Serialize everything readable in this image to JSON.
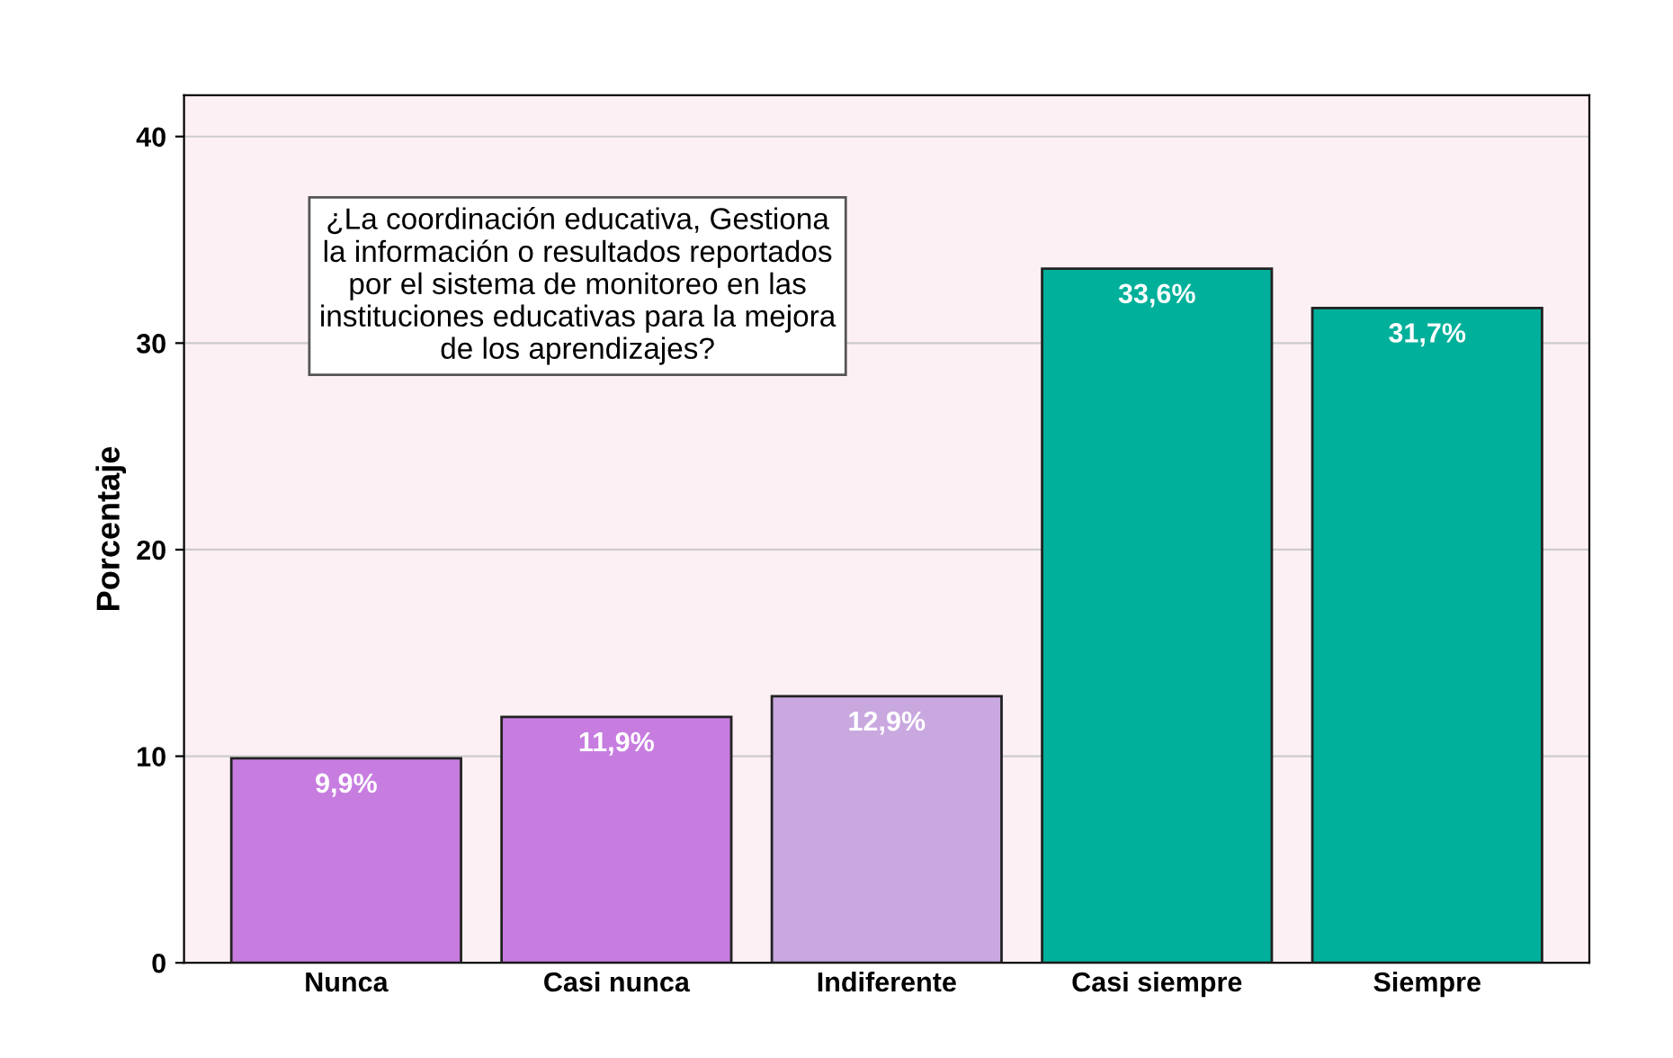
{
  "chart_data": {
    "type": "bar",
    "ylabel": "Porcentaje",
    "categories": [
      "Nunca",
      "Casi nunca",
      "Indiferente",
      "Casi siempre",
      "Siempre"
    ],
    "values": [
      9.9,
      11.9,
      12.9,
      33.6,
      31.7
    ],
    "colors": [
      "#c77de0",
      "#c77de0",
      "#c9a8e0",
      "#00b09a",
      "#00b09a"
    ],
    "value_labels": [
      "9,9%",
      "11,9%",
      "12,9%",
      "33,6%",
      "31,7%"
    ],
    "annotations": [
      "¿La coordinación educativa, Gestiona\nla información o resultados reportados\npor el sistema de monitoreo en las\ninstituciones educativas para la mejora\nde los aprendizajes?"
    ],
    "ylim": [
      0,
      42
    ],
    "yticks": [
      0,
      10,
      20,
      30,
      40
    ],
    "grid": "y"
  }
}
